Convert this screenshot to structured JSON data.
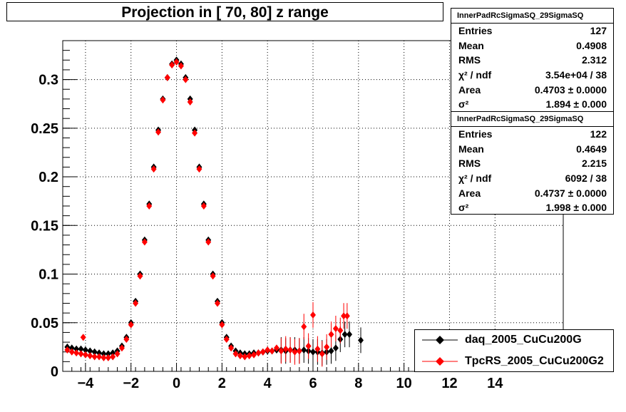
{
  "title": "Projection in [  70,  80] z range",
  "stats": [
    {
      "name": "InnerPadRcSigmaSQ_29SigmaSQ",
      "rows": [
        {
          "label": "Entries",
          "value": "127"
        },
        {
          "label": "Mean",
          "value": "0.4908"
        },
        {
          "label": "RMS",
          "value": "2.312"
        },
        {
          "label": "χ² / ndf",
          "value": "3.54e+04 / 38"
        },
        {
          "label": "Area",
          "value": "0.4703 ± 0.0000"
        },
        {
          "label": "σ²",
          "value": "1.894 ± 0.000"
        }
      ]
    },
    {
      "name": "InnerPadRcSigmaSQ_29SigmaSQ",
      "rows": [
        {
          "label": "Entries",
          "value": "122"
        },
        {
          "label": "Mean",
          "value": "0.4649"
        },
        {
          "label": "RMS",
          "value": "2.215"
        },
        {
          "label": "χ² / ndf",
          "value": "6092 / 38"
        },
        {
          "label": "Area",
          "value": "0.4737 ± 0.0000"
        },
        {
          "label": "σ²",
          "value": "1.998 ± 0.000"
        }
      ]
    }
  ],
  "legend": [
    {
      "label": "daq_2005_CuCu200G",
      "color": "#000000"
    },
    {
      "label": "TpcRS_2005_CuCu200G2",
      "color": "#ff0000"
    }
  ],
  "chart_data": {
    "type": "scatter",
    "xlim": [
      -5,
      17
    ],
    "ylim": [
      0,
      0.34
    ],
    "x_ticks": [
      -4,
      -2,
      0,
      2,
      4,
      6,
      8,
      10,
      12,
      14
    ],
    "x_tick_labels": [
      "−4",
      "−2",
      "0",
      "2",
      "4",
      "6",
      "8",
      "10",
      "12",
      "14"
    ],
    "y_ticks": [
      0,
      0.05,
      0.1,
      0.15,
      0.2,
      0.25,
      0.3
    ],
    "y_tick_labels": [
      "0",
      "0.05",
      "0.1",
      "0.15",
      "0.2",
      "0.25",
      "0.3"
    ],
    "grid": true,
    "series": [
      {
        "name": "daq_2005_CuCu200G",
        "color": "#000000",
        "x": [
          -4.8,
          -4.6,
          -4.4,
          -4.2,
          -4.0,
          -3.8,
          -3.6,
          -3.4,
          -3.2,
          -3.0,
          -2.8,
          -2.6,
          -2.4,
          -2.2,
          -2.0,
          -1.8,
          -1.6,
          -1.4,
          -1.2,
          -1.0,
          -0.8,
          -0.6,
          -0.4,
          -0.2,
          0.0,
          0.2,
          0.4,
          0.6,
          0.8,
          1.0,
          1.2,
          1.4,
          1.6,
          1.8,
          2.0,
          2.2,
          2.4,
          2.6,
          2.8,
          3.0,
          3.2,
          3.4,
          3.6,
          3.8,
          4.0,
          4.2,
          4.4,
          4.6,
          4.8,
          5.0,
          5.2,
          5.4,
          5.6,
          5.8,
          6.0,
          6.2,
          6.4,
          6.6,
          6.8,
          7.0,
          7.2,
          7.4,
          7.6,
          8.1
        ],
        "y": [
          0.025,
          0.024,
          0.023,
          0.023,
          0.022,
          0.021,
          0.02,
          0.019,
          0.018,
          0.018,
          0.019,
          0.021,
          0.026,
          0.035,
          0.05,
          0.072,
          0.1,
          0.135,
          0.172,
          0.21,
          0.248,
          0.28,
          0.302,
          0.316,
          0.32,
          0.316,
          0.302,
          0.28,
          0.248,
          0.21,
          0.172,
          0.135,
          0.1,
          0.072,
          0.05,
          0.035,
          0.026,
          0.021,
          0.019,
          0.018,
          0.018,
          0.019,
          0.019,
          0.02,
          0.021,
          0.021,
          0.022,
          0.022,
          0.021,
          0.022,
          0.022,
          0.021,
          0.022,
          0.021,
          0.02,
          0.02,
          0.019,
          0.02,
          0.021,
          0.024,
          0.033,
          0.038,
          0.038,
          0.032
        ]
      },
      {
        "name": "TpcRS_2005_CuCu200G2",
        "color": "#ff0000",
        "x": [
          -4.8,
          -4.6,
          -4.4,
          -4.2,
          -4.0,
          -3.8,
          -3.6,
          -3.4,
          -3.2,
          -3.0,
          -2.8,
          -2.6,
          -2.4,
          -2.2,
          -2.0,
          -1.8,
          -1.6,
          -1.4,
          -1.2,
          -1.0,
          -0.8,
          -0.6,
          -0.4,
          -0.2,
          0.0,
          0.2,
          0.4,
          0.6,
          0.8,
          1.0,
          1.2,
          1.4,
          1.6,
          1.8,
          2.0,
          2.2,
          2.4,
          2.6,
          2.8,
          3.0,
          3.2,
          3.4,
          3.6,
          3.8,
          4.0,
          4.2,
          4.4,
          4.6,
          4.8,
          5.0,
          5.2,
          5.4,
          5.6,
          5.8,
          6.0,
          6.2,
          6.4,
          6.6,
          6.8,
          7.0,
          7.2,
          7.35,
          7.5,
          -4.1
        ],
        "y": [
          0.022,
          0.02,
          0.019,
          0.018,
          0.017,
          0.016,
          0.015,
          0.015,
          0.014,
          0.014,
          0.015,
          0.018,
          0.024,
          0.033,
          0.048,
          0.07,
          0.098,
          0.133,
          0.17,
          0.208,
          0.246,
          0.279,
          0.302,
          0.315,
          0.318,
          0.314,
          0.3,
          0.277,
          0.245,
          0.208,
          0.17,
          0.133,
          0.098,
          0.07,
          0.048,
          0.033,
          0.024,
          0.018,
          0.016,
          0.015,
          0.016,
          0.017,
          0.019,
          0.02,
          0.022,
          0.021,
          0.024,
          0.021,
          0.023,
          0.022,
          0.02,
          0.021,
          0.046,
          0.026,
          0.058,
          0.023,
          0.018,
          0.025,
          0.038,
          0.044,
          0.042,
          0.057,
          0.057,
          0.035
        ]
      }
    ]
  }
}
